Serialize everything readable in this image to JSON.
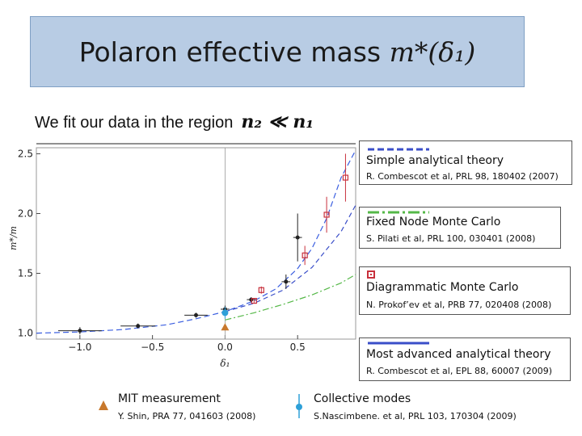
{
  "title": {
    "text": "Polaron effective mass ",
    "math": "m*(δ₁)"
  },
  "subtitle": {
    "text": "We fit our data in the region",
    "math": "n₂ ≪ n₁"
  },
  "colors": {
    "title_bg": "#b8cce4",
    "simple": "#3a4ec8",
    "fixed_node": "#55b848",
    "diag": "#c8303c",
    "advanced": "#3a4ec8",
    "mit": "#c8782c",
    "collective": "#2ea0d8",
    "data_black": "#222222"
  },
  "legend": {
    "simple": {
      "name": "Simple analytical theory",
      "ref": "R. Combescot et al, PRL 98, 180402 (2007)"
    },
    "fixed_node": {
      "name": "Fixed Node Monte Carlo",
      "ref": "S. Pilati et al, PRL 100, 030401 (2008)"
    },
    "diagrammatic": {
      "name": "Diagrammatic Monte Carlo",
      "ref": "N. Prokof’ev et al, PRB 77, 020408 (2008)"
    },
    "advanced": {
      "name": "Most advanced analytical theory",
      "ref": "R. Combescot et al, EPL 88, 60007 (2009)"
    }
  },
  "footer": {
    "mit": {
      "name": "MIT measurement",
      "ref": "Y. Shin, PRA 77, 041603 (2008)",
      "icon": "triangle-marker"
    },
    "collective": {
      "name": "Collective modes",
      "ref": "S.Nascimbene. et al, PRL 103, 170304 (2009)",
      "icon": "circle-errorbar-marker"
    }
  },
  "chart_data": {
    "type": "scatter",
    "xlabel": "δ₁",
    "ylabel": "m*/m",
    "xlim": [
      -1.3,
      0.9
    ],
    "ylim": [
      0.95,
      2.55
    ],
    "x_ticks": [
      -1.0,
      -0.5,
      0.0,
      0.5
    ],
    "x_tick_labels": [
      "−1.0",
      "−0.5",
      "0.0",
      "0.5"
    ],
    "y_ticks": [
      1.0,
      1.5,
      2.0,
      2.5
    ],
    "y_tick_labels": [
      "1.0",
      "1.5",
      "2.0",
      "2.5"
    ],
    "series": [
      {
        "name": "",
        "kind": "points",
        "marker": "black-dot",
        "points": [
          {
            "x": -1.0,
            "y": 1.02,
            "xerr": 0.15,
            "yerr": 0.03
          },
          {
            "x": -0.6,
            "y": 1.06,
            "xerr": 0.12,
            "yerr": 0.02
          },
          {
            "x": -0.2,
            "y": 1.15,
            "xerr": 0.08,
            "yerr": 0.02
          },
          {
            "x": 0.0,
            "y": 1.2,
            "xerr": 0.03,
            "yerr": 0.03
          },
          {
            "x": 0.18,
            "y": 1.28,
            "xerr": 0.03,
            "yerr": 0.02
          },
          {
            "x": 0.42,
            "y": 1.43,
            "xerr": 0.03,
            "yerr": 0.06
          },
          {
            "x": 0.5,
            "y": 1.8,
            "xerr": 0.03,
            "yerr": 0.2
          }
        ]
      },
      {
        "name": "",
        "kind": "points",
        "marker": "red-square",
        "points": [
          {
            "x": 0.2,
            "y": 1.27,
            "yerr": 0.02
          },
          {
            "x": 0.25,
            "y": 1.36,
            "yerr": 0.03
          },
          {
            "x": 0.55,
            "y": 1.65,
            "yerr": 0.08
          },
          {
            "x": 0.7,
            "y": 1.99,
            "yerr": 0.15
          },
          {
            "x": 0.83,
            "y": 2.3,
            "yerr": 0.2
          }
        ]
      },
      {
        "name": "",
        "kind": "points",
        "marker": "orange-triangle",
        "points": [
          {
            "x": 0.0,
            "y": 1.05
          }
        ]
      },
      {
        "name": "",
        "kind": "points",
        "marker": "cyan-circle",
        "points": [
          {
            "x": 0.0,
            "y": 1.17,
            "yerr": 0.05
          }
        ]
      },
      {
        "name": "",
        "kind": "curve",
        "style": "dash-blue",
        "x": [
          -1.3,
          -1.0,
          -0.7,
          -0.4,
          -0.2,
          0.0,
          0.2,
          0.35,
          0.5,
          0.6,
          0.7,
          0.8,
          0.9
        ],
        "y": [
          1.0,
          1.01,
          1.03,
          1.07,
          1.12,
          1.18,
          1.27,
          1.37,
          1.54,
          1.71,
          1.96,
          2.3,
          2.53
        ]
      },
      {
        "name": "",
        "kind": "curve",
        "style": "dash-navy",
        "x": [
          0.0,
          0.2,
          0.4,
          0.6,
          0.8,
          0.9
        ],
        "y": [
          1.18,
          1.25,
          1.36,
          1.55,
          1.85,
          2.07
        ]
      },
      {
        "name": "",
        "kind": "curve",
        "style": "dashdot-green",
        "x": [
          0.0,
          0.2,
          0.4,
          0.6,
          0.8,
          0.9
        ],
        "y": [
          1.11,
          1.17,
          1.24,
          1.32,
          1.42,
          1.49
        ]
      }
    ]
  }
}
